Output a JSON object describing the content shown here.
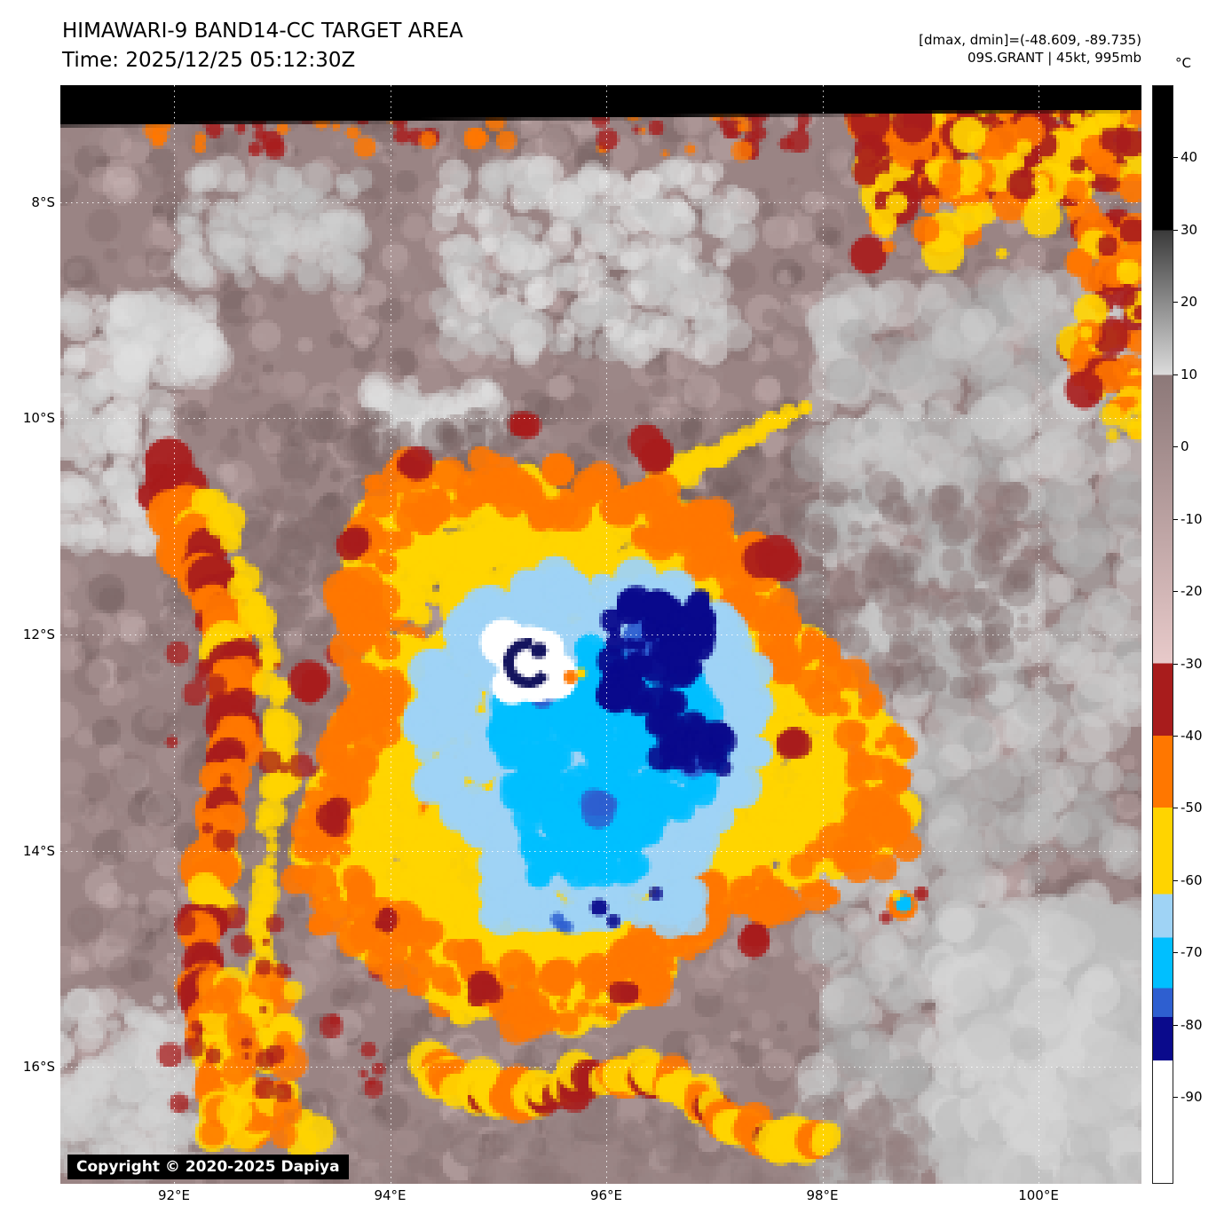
{
  "header": {
    "title": "HIMAWARI-9 BAND14-CC TARGET AREA",
    "time": "Time: 2025/12/25 05:12:30Z",
    "dmax_dmin": "[dmax, dmin]=(-48.609, -89.735)",
    "storm": "09S.GRANT | 45kt, 995mb"
  },
  "colorbar": {
    "unit": "°C",
    "range": [
      50,
      -102
    ],
    "ticks": [
      40,
      30,
      20,
      10,
      0,
      -10,
      -20,
      -30,
      -40,
      -50,
      -60,
      -70,
      -80,
      -90
    ],
    "segments": [
      {
        "from": 50,
        "to": 30,
        "color": "#000000"
      },
      {
        "from": 30,
        "to": 10,
        "color": "#3a3a3a",
        "color2": "#dcdcdc"
      },
      {
        "from": 10,
        "to": -30,
        "color": "#8c7878",
        "color2": "#e8caca"
      },
      {
        "from": -30,
        "to": -40,
        "color": "#a81c1c"
      },
      {
        "from": -40,
        "to": -50,
        "color": "#ff7700"
      },
      {
        "from": -50,
        "to": -62,
        "color": "#ffd400"
      },
      {
        "from": -62,
        "to": -68,
        "color": "#9fd3f5"
      },
      {
        "from": -68,
        "to": -75,
        "color": "#00bfff"
      },
      {
        "from": -75,
        "to": -79,
        "color": "#2e5fd0"
      },
      {
        "from": -79,
        "to": -85,
        "color": "#0a0a8c"
      },
      {
        "from": -85,
        "to": -102,
        "color": "#ffffff"
      }
    ]
  },
  "map": {
    "lat_labels": [
      "8°S",
      "10°S",
      "12°S",
      "14°S",
      "16°S"
    ],
    "lon_labels": [
      "92°E",
      "94°E",
      "96°E",
      "98°E",
      "100°E"
    ],
    "copyright": "Copyright © 2020-2025 Dapiya"
  }
}
